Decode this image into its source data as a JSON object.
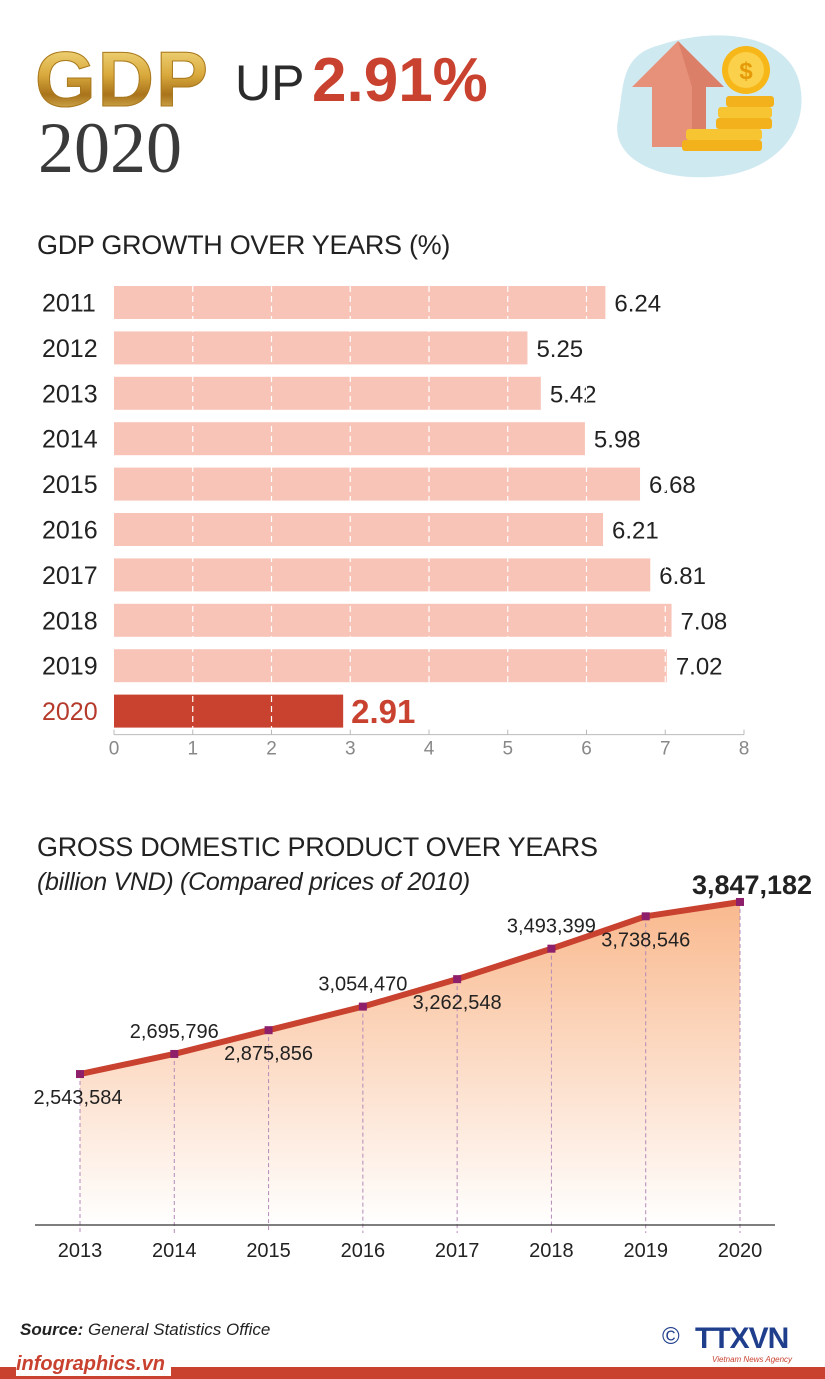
{
  "header": {
    "gdp_label": "GDP",
    "up_label": "UP",
    "growth_pct": "2.91%",
    "year": "2020",
    "illustration_icon": "arrow-up-coins-icon"
  },
  "chart_data": [
    {
      "type": "bar",
      "orientation": "horizontal",
      "title": "GDP GROWTH OVER YEARS (%)",
      "categories": [
        "2011",
        "2012",
        "2013",
        "2014",
        "2015",
        "2016",
        "2017",
        "2018",
        "2019",
        "2020"
      ],
      "values": [
        6.24,
        5.25,
        5.42,
        5.98,
        6.68,
        6.21,
        6.81,
        7.08,
        7.02,
        2.91
      ],
      "value_labels": [
        "6.24",
        "5.25",
        "5.42",
        "5.98",
        "6.68",
        "6.21",
        "6.81",
        "7.08",
        "7.02",
        "2.91"
      ],
      "xlim": [
        0,
        8
      ],
      "xticks": [
        "0",
        "1",
        "2",
        "3",
        "4",
        "5",
        "6",
        "7",
        "8"
      ],
      "highlight_category": "2020",
      "grid": true,
      "colors": {
        "bar": "#f8c4b8",
        "highlight": "#c9412f",
        "highlight_text": "#b53a2b",
        "grid": "#ffffff",
        "tick": "#888888"
      }
    },
    {
      "type": "area",
      "title": "GROSS DOMESTIC PRODUCT OVER YEARS",
      "subtitle": "(billion VND) (Compared prices of 2010)",
      "x": [
        "2013",
        "2014",
        "2015",
        "2016",
        "2017",
        "2018",
        "2019",
        "2020"
      ],
      "values": [
        2543584,
        2695796,
        2875856,
        3054470,
        3262548,
        3493399,
        3738546,
        3847182
      ],
      "value_labels": [
        "2,543,584",
        "2,695,796",
        "2,875,856",
        "3,054,470",
        "3,262,548",
        "3,493,399",
        "3,738,546",
        "3,847,182"
      ],
      "label_position": [
        "below",
        "above",
        "below",
        "above",
        "below",
        "above",
        "below",
        "above"
      ],
      "ylim": [
        1400000,
        3900000
      ],
      "highlight_last": true,
      "colors": {
        "line": "#c9412f",
        "fill_top": "#f9b98e",
        "fill_bottom": "#ffffff",
        "marker": "#8e1f6a"
      }
    }
  ],
  "footer": {
    "source_label": "Source:",
    "source_text": "General Statistics Office",
    "site": "infographics.vn",
    "copyright_symbol": "©",
    "agency": "TTXVN",
    "agency_sub": "Vietnam News Agency"
  }
}
